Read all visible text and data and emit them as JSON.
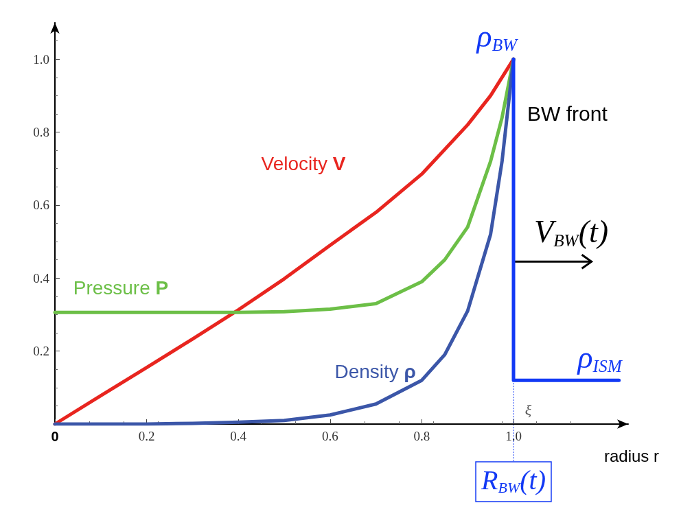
{
  "chart_data": {
    "type": "line",
    "xlabel": "radius r",
    "xlim": [
      0,
      1.25
    ],
    "ylim": [
      0,
      1.1
    ],
    "xticks": [
      {
        "value": 0,
        "label": "0"
      },
      0.2,
      0.4,
      0.6,
      0.8,
      {
        "value": 1,
        "label": "1.0"
      }
    ],
    "yticks": [
      {
        "value": 0,
        "label": null
      },
      0.2,
      0.4,
      0.6,
      0.8,
      {
        "value": 1,
        "label": "1.0"
      }
    ],
    "grid": false,
    "legend": false,
    "marker": "none",
    "line_style": "solid",
    "series": [
      {
        "name": "Velocity V",
        "color": "#e8251f",
        "x": [
          0,
          0.1,
          0.2,
          0.3,
          0.4,
          0.5,
          0.6,
          0.7,
          0.8,
          0.9,
          0.95,
          1
        ],
        "values": [
          0,
          0.078,
          0.155,
          0.233,
          0.313,
          0.398,
          0.49,
          0.58,
          0.685,
          0.82,
          0.9,
          1
        ]
      },
      {
        "name": "Pressure P",
        "color": "#6cbf47",
        "x": [
          0,
          0.1,
          0.2,
          0.3,
          0.4,
          0.5,
          0.6,
          0.7,
          0.8,
          0.85,
          0.9,
          0.95,
          0.975,
          1
        ],
        "values": [
          0.306,
          0.306,
          0.306,
          0.306,
          0.306,
          0.308,
          0.315,
          0.33,
          0.39,
          0.45,
          0.54,
          0.72,
          0.84,
          1
        ]
      },
      {
        "name": "Density ρ",
        "color": "#3b56a8",
        "x": [
          0,
          0.1,
          0.2,
          0.3,
          0.4,
          0.5,
          0.6,
          0.7,
          0.8,
          0.85,
          0.9,
          0.95,
          0.975,
          1
        ],
        "values": [
          0,
          0,
          0,
          0.002,
          0.005,
          0.01,
          0.025,
          0.055,
          0.12,
          0.19,
          0.31,
          0.52,
          0.72,
          1
        ]
      },
      {
        "color": "#1239f5",
        "x": [
          1,
          1,
          1.23
        ],
        "values": [
          1,
          0.12,
          0.12
        ]
      }
    ],
    "ref_lines": [
      {
        "axis": "x",
        "value": 1,
        "label": "R$_{BW}$(t)",
        "line_style": "dotted",
        "color": "#1239f5"
      }
    ],
    "annotations": [
      "ρ$_{BW}$",
      "BW front",
      "V$_{BW}$(t)",
      "ρ$_{ISM}$",
      "ξ"
    ]
  }
}
